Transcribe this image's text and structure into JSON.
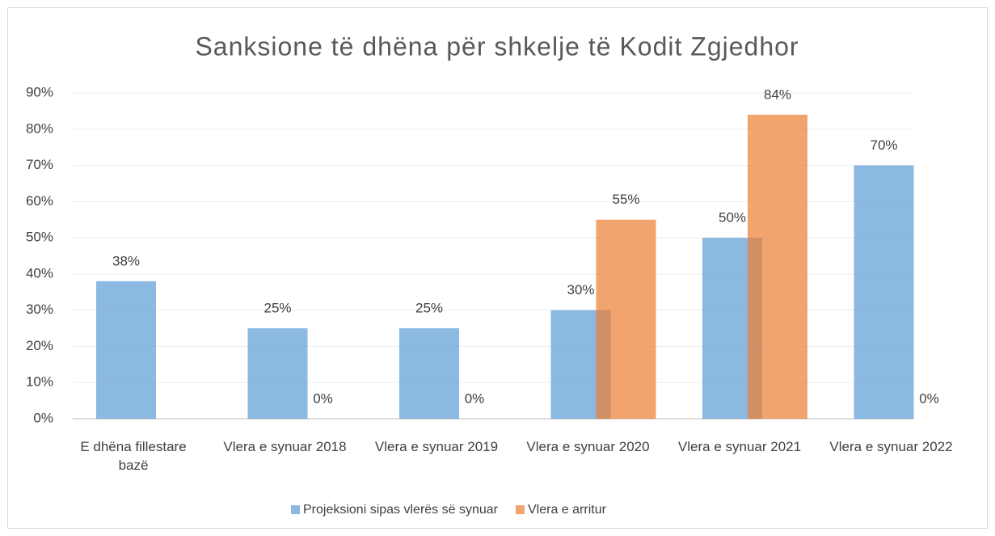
{
  "chart_data": {
    "type": "bar",
    "title": "Sanksione të dhëna për shkelje të Kodit Zgjedhor",
    "categories": [
      "E dhëna fillestare bazë",
      "Vlera e synuar 2018",
      "Vlera e synuar 2019",
      "Vlera e synuar 2020",
      "Vlera e synuar 2021",
      "Vlera e synuar 2022"
    ],
    "series": [
      {
        "name": "Projeksioni sipas vlerës së synuar",
        "color": "#5b9bd5",
        "values": [
          38,
          25,
          25,
          30,
          50,
          70
        ],
        "value_labels": [
          "38%",
          "25%",
          "25%",
          "30%",
          "50%",
          "70%"
        ]
      },
      {
        "name": "Vlera e arritur",
        "color": "#ed7d31",
        "values": [
          null,
          0,
          0,
          55,
          84,
          0
        ],
        "value_labels": [
          null,
          "0%",
          "0%",
          "55%",
          "84%",
          "0%"
        ]
      }
    ],
    "ylim": [
      0,
      90
    ],
    "yticks": [
      {
        "value": 0,
        "label": "0%"
      },
      {
        "value": 10,
        "label": "10%"
      },
      {
        "value": 20,
        "label": "20%"
      },
      {
        "value": 30,
        "label": "30%"
      },
      {
        "value": 40,
        "label": "40%"
      },
      {
        "value": 50,
        "label": "50%"
      },
      {
        "value": 60,
        "label": "60%"
      },
      {
        "value": 70,
        "label": "70%"
      },
      {
        "value": 80,
        "label": "80%"
      },
      {
        "value": 90,
        "label": "90%"
      }
    ],
    "grid": true,
    "legend": "bottom"
  }
}
